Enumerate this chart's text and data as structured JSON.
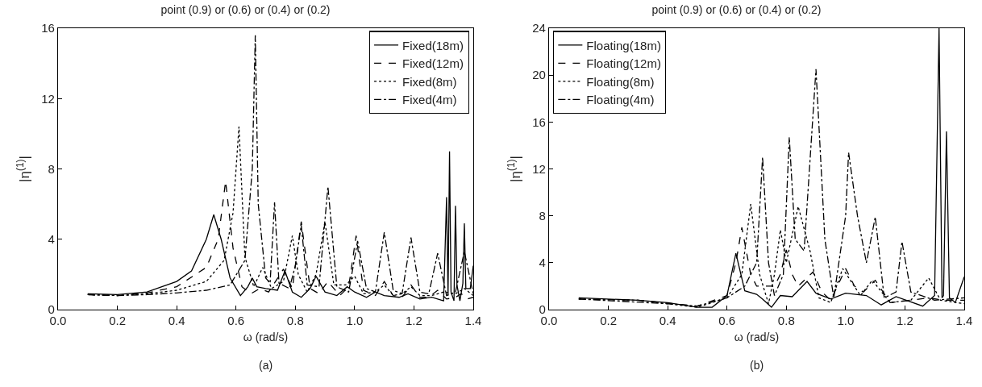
{
  "chart_data": [
    {
      "type": "line",
      "title": "point (0.9) or (0.6) or (0.4) or (0.2)",
      "xlabel": "ω (rad/s)",
      "ylabel": "|η$^{(1)}$|",
      "annotations": [
        "(a)"
      ],
      "legend": "top right",
      "grid": false,
      "marker": "none",
      "xlim": [
        0,
        1.4
      ],
      "xticks": [
        {
          "value": 0,
          "label": "0.0"
        },
        {
          "value": 0.2,
          "label": "0.2"
        },
        {
          "value": 0.4,
          "label": "0.4"
        },
        {
          "value": 0.6,
          "label": "0.6"
        },
        {
          "value": 0.8,
          "label": "0.8"
        },
        {
          "value": 1.0,
          "label": "1.0"
        },
        {
          "value": 1.2,
          "label": "1.2"
        },
        {
          "value": 1.4,
          "label": "1.4"
        }
      ],
      "ylim": [
        0,
        16
      ],
      "yticks": [
        0,
        4,
        8,
        12,
        16
      ],
      "series": [
        {
          "name": "Fixed(18m)",
          "color": "#000000",
          "line_style": "solid",
          "x": [
            0.1,
            0.2,
            0.3,
            0.4,
            0.45,
            0.5,
            0.525,
            0.55,
            0.58,
            0.615,
            0.64,
            0.655,
            0.67,
            0.7,
            0.74,
            0.765,
            0.79,
            0.82,
            0.85,
            0.87,
            0.9,
            0.94,
            0.975,
            1.0,
            1.04,
            1.07,
            1.1,
            1.15,
            1.18,
            1.22,
            1.26,
            1.3,
            1.31,
            1.315,
            1.32,
            1.325,
            1.335,
            1.34,
            1.345,
            1.355,
            1.365,
            1.37,
            1.375,
            1.39,
            1.4
          ],
          "values": [
            0.9,
            0.85,
            1.0,
            1.6,
            2.2,
            4.0,
            5.4,
            4.0,
            1.8,
            0.8,
            1.3,
            1.8,
            1.3,
            1.2,
            1.1,
            2.2,
            1.0,
            0.7,
            1.2,
            1.9,
            1.0,
            0.8,
            1.3,
            1.0,
            0.7,
            1.0,
            0.8,
            0.7,
            0.9,
            0.6,
            0.7,
            0.5,
            6.4,
            0.8,
            9.0,
            1.0,
            0.5,
            5.9,
            1.4,
            0.5,
            1.5,
            4.9,
            1.2,
            1.2,
            2.5
          ]
        },
        {
          "name": "Fixed(12m)",
          "color": "#000000",
          "line_style": "dashed",
          "x": [
            0.1,
            0.2,
            0.3,
            0.4,
            0.5,
            0.54,
            0.565,
            0.59,
            0.62,
            0.65,
            0.68,
            0.71,
            0.76,
            0.79,
            0.82,
            0.85,
            0.88,
            0.91,
            0.95,
            0.98,
            1.005,
            1.03,
            1.07,
            1.1,
            1.13,
            1.16,
            1.19,
            1.22,
            1.25,
            1.28,
            1.31,
            1.34,
            1.36,
            1.38,
            1.4
          ],
          "values": [
            0.85,
            0.8,
            0.95,
            1.3,
            2.4,
            4.0,
            7.3,
            3.5,
            1.3,
            0.9,
            1.2,
            1.0,
            2.3,
            1.2,
            5.0,
            1.2,
            0.9,
            1.6,
            0.8,
            1.3,
            4.2,
            1.1,
            0.8,
            1.6,
            0.8,
            0.7,
            1.4,
            0.7,
            0.7,
            1.1,
            0.6,
            0.7,
            0.9,
            0.6,
            0.7
          ]
        },
        {
          "name": "Fixed(8m)",
          "color": "#000000",
          "line_style": "dotted",
          "x": [
            0.1,
            0.2,
            0.3,
            0.4,
            0.5,
            0.56,
            0.59,
            0.61,
            0.63,
            0.66,
            0.69,
            0.72,
            0.76,
            0.79,
            0.81,
            0.84,
            0.87,
            0.9,
            0.93,
            0.97,
            1.0,
            1.03,
            1.07,
            1.1,
            1.13,
            1.16,
            1.19,
            1.22,
            1.26,
            1.3,
            1.34,
            1.37,
            1.4
          ],
          "values": [
            0.85,
            0.8,
            0.9,
            1.1,
            1.6,
            2.8,
            5.5,
            10.4,
            3.0,
            1.3,
            2.4,
            1.2,
            1.6,
            4.2,
            2.0,
            1.0,
            2.0,
            5.0,
            1.4,
            1.4,
            1.9,
            0.9,
            1.0,
            1.4,
            0.8,
            0.9,
            1.3,
            0.8,
            0.8,
            1.0,
            0.9,
            1.2,
            0.8
          ]
        },
        {
          "name": "Fixed(4m)",
          "color": "#000000",
          "line_style": "dashdot",
          "x": [
            0.1,
            0.2,
            0.3,
            0.4,
            0.5,
            0.58,
            0.63,
            0.655,
            0.665,
            0.675,
            0.7,
            0.715,
            0.73,
            0.745,
            0.78,
            0.8,
            0.82,
            0.84,
            0.88,
            0.91,
            0.94,
            0.98,
            1.01,
            1.04,
            1.07,
            1.1,
            1.13,
            1.16,
            1.19,
            1.22,
            1.25,
            1.28,
            1.31,
            1.34,
            1.37,
            1.4
          ],
          "values": [
            0.85,
            0.8,
            0.85,
            0.95,
            1.1,
            1.4,
            2.8,
            8.0,
            15.6,
            6.0,
            1.8,
            1.5,
            6.1,
            1.5,
            1.2,
            2.5,
            4.8,
            1.4,
            1.3,
            7.0,
            1.3,
            1.0,
            3.9,
            1.2,
            1.0,
            4.4,
            1.1,
            0.9,
            4.1,
            1.0,
            0.9,
            3.2,
            0.8,
            1.0,
            3.3,
            0.9
          ]
        }
      ]
    },
    {
      "type": "line",
      "title": "point (0.9) or (0.6) or (0.4) or (0.2)",
      "xlabel": "ω (rad/s)",
      "ylabel": "|η$^{(1)}$|",
      "annotations": [
        "(b)"
      ],
      "legend": "top left",
      "grid": false,
      "marker": "none",
      "xlim": [
        0,
        1.4
      ],
      "xticks": [
        {
          "value": 0,
          "label": "0.0"
        },
        {
          "value": 0.2,
          "label": "0.2"
        },
        {
          "value": 0.4,
          "label": "0.4"
        },
        {
          "value": 0.6,
          "label": "0.6"
        },
        {
          "value": 0.8,
          "label": "0.8"
        },
        {
          "value": 1.0,
          "label": "1.0"
        },
        {
          "value": 1.2,
          "label": "1.2"
        },
        {
          "value": 1.4,
          "label": "1.4"
        }
      ],
      "ylim": [
        0,
        24
      ],
      "yticks": [
        0,
        4,
        8,
        12,
        16,
        20,
        24
      ],
      "series": [
        {
          "name": "Floating(18m)",
          "color": "#000000",
          "line_style": "solid",
          "x": [
            0.1,
            0.3,
            0.4,
            0.5,
            0.55,
            0.6,
            0.63,
            0.66,
            0.7,
            0.72,
            0.75,
            0.78,
            0.82,
            0.87,
            0.9,
            0.95,
            1.0,
            1.07,
            1.12,
            1.17,
            1.26,
            1.3,
            1.315,
            1.325,
            1.33,
            1.34,
            1.35,
            1.37,
            1.4
          ],
          "values": [
            1.0,
            0.8,
            0.6,
            0.2,
            0.2,
            1.2,
            4.8,
            1.6,
            1.3,
            0.9,
            0.2,
            1.2,
            1.1,
            2.4,
            1.4,
            0.9,
            1.4,
            1.2,
            0.4,
            1.1,
            0.3,
            1.2,
            24,
            1.0,
            1.2,
            15.2,
            1.0,
            0.6,
            2.8
          ]
        },
        {
          "name": "Floating(12m)",
          "color": "#000000",
          "line_style": "dashed",
          "x": [
            0.1,
            0.3,
            0.5,
            0.6,
            0.63,
            0.65,
            0.68,
            0.7,
            0.76,
            0.78,
            0.8,
            0.82,
            0.84,
            0.89,
            0.92,
            0.95,
            1.0,
            1.03,
            1.06,
            1.1,
            1.15,
            1.22,
            1.28,
            1.33,
            1.4
          ],
          "values": [
            0.9,
            0.8,
            0.3,
            1.2,
            4.0,
            7.0,
            3.0,
            2.0,
            2.0,
            3.0,
            5.1,
            3.0,
            2.0,
            3.2,
            1.5,
            0.8,
            3.5,
            2.0,
            1.5,
            2.5,
            0.6,
            0.8,
            1.0,
            0.8,
            0.8
          ]
        },
        {
          "name": "Floating(8m)",
          "color": "#000000",
          "line_style": "dotted",
          "x": [
            0.1,
            0.3,
            0.5,
            0.6,
            0.65,
            0.68,
            0.71,
            0.74,
            0.76,
            0.78,
            0.8,
            0.84,
            0.88,
            0.91,
            0.95,
            0.99,
            1.05,
            1.09,
            1.15,
            1.22,
            1.28,
            1.32,
            1.4
          ],
          "values": [
            0.9,
            0.8,
            0.2,
            1.0,
            3.0,
            9.0,
            3.0,
            0.5,
            3.0,
            6.8,
            4.0,
            8.8,
            5.0,
            1.0,
            0.6,
            3.5,
            1.2,
            2.5,
            0.6,
            0.8,
            2.7,
            0.8,
            0.5
          ]
        },
        {
          "name": "Floating(4m)",
          "color": "#000000",
          "line_style": "dashdot",
          "x": [
            0.1,
            0.4,
            0.5,
            0.6,
            0.66,
            0.7,
            0.72,
            0.74,
            0.76,
            0.79,
            0.81,
            0.83,
            0.86,
            0.9,
            0.93,
            0.96,
            1.0,
            1.01,
            1.04,
            1.07,
            1.1,
            1.13,
            1.17,
            1.19,
            1.22,
            1.3,
            1.4
          ],
          "values": [
            0.9,
            0.5,
            0.3,
            1.0,
            2.0,
            4.0,
            13.0,
            4.0,
            1.2,
            3.0,
            14.7,
            6.0,
            5.0,
            20.5,
            6.0,
            1.0,
            8.0,
            13.4,
            8.0,
            4.0,
            7.9,
            1.0,
            1.5,
            5.8,
            1.5,
            0.8,
            1.0
          ]
        }
      ]
    }
  ]
}
